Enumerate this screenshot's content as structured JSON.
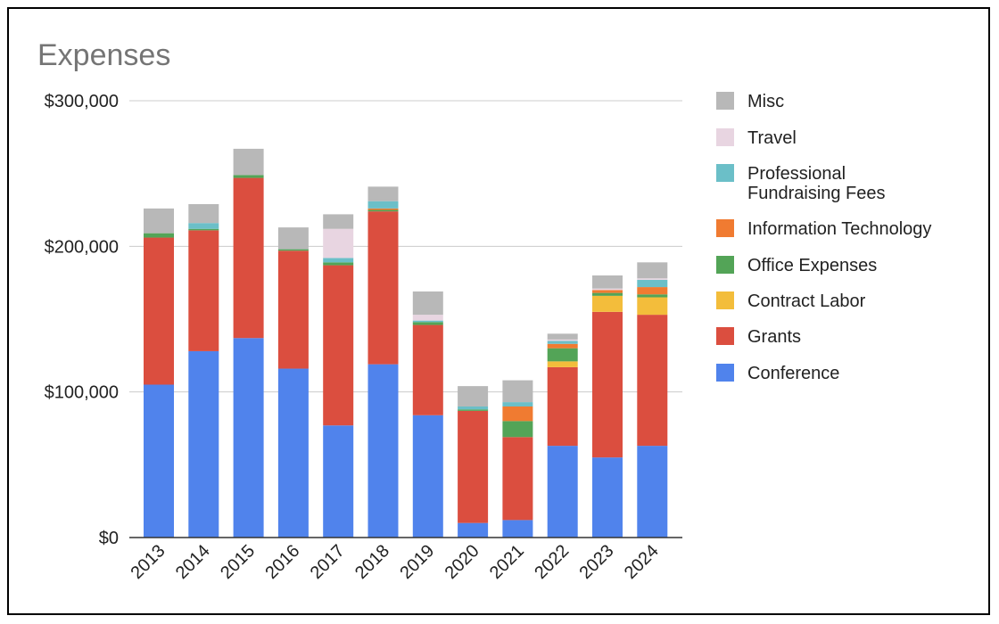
{
  "chart_data": {
    "type": "bar",
    "stacked": true,
    "title": "Expenses",
    "xlabel": "",
    "ylabel": "",
    "ylim": [
      0,
      300000
    ],
    "yticks": [
      0,
      100000,
      200000,
      300000
    ],
    "ytick_labels": [
      "$0",
      "$100,000",
      "$200,000",
      "$300,000"
    ],
    "grid": true,
    "legend_position": "right",
    "categories": [
      "2013",
      "2014",
      "2015",
      "2016",
      "2017",
      "2018",
      "2019",
      "2020",
      "2021",
      "2022",
      "2023",
      "2024"
    ],
    "series": [
      {
        "name": "Conference",
        "color": "#5083EC",
        "values": [
          105000,
          128000,
          137000,
          116000,
          77000,
          119000,
          84000,
          10000,
          12000,
          63000,
          55000,
          63000
        ]
      },
      {
        "name": "Grants",
        "color": "#DB4E3F",
        "values": [
          101000,
          83000,
          110000,
          81000,
          110000,
          105000,
          62000,
          77000,
          57000,
          54000,
          100000,
          90000
        ]
      },
      {
        "name": "Contract Labor",
        "color": "#F3BD3B",
        "values": [
          0,
          0,
          0,
          0,
          0,
          0,
          0,
          0,
          0,
          4000,
          11000,
          12000
        ]
      },
      {
        "name": "Office Expenses",
        "color": "#53A457",
        "values": [
          3000,
          1000,
          2000,
          1000,
          2000,
          1000,
          2000,
          1000,
          11000,
          9000,
          2000,
          2000
        ]
      },
      {
        "name": "Information Technology",
        "color": "#F07B31",
        "values": [
          0,
          0,
          0,
          0,
          0,
          1000,
          0,
          0,
          10000,
          3000,
          2000,
          5000
        ]
      },
      {
        "name": "Professional Fundraising Fees",
        "color": "#6BBFC8",
        "values": [
          0,
          4000,
          0,
          0,
          3000,
          5000,
          1000,
          2000,
          3000,
          2000,
          0,
          5000
        ]
      },
      {
        "name": "Travel",
        "color": "#E8D5E1",
        "values": [
          0,
          0,
          0,
          0,
          20000,
          0,
          4000,
          0,
          0,
          1000,
          1000,
          1000
        ]
      },
      {
        "name": "Misc",
        "color": "#B8B8B8",
        "values": [
          17000,
          13000,
          18000,
          15000,
          10000,
          10000,
          16000,
          14000,
          15000,
          4000,
          9000,
          11000
        ]
      }
    ],
    "legend_order": [
      "Misc",
      "Travel",
      "Professional Fundraising Fees",
      "Information Technology",
      "Office Expenses",
      "Contract Labor",
      "Grants",
      "Conference"
    ],
    "legend_labels": {
      "Misc": [
        "Misc"
      ],
      "Travel": [
        "Travel"
      ],
      "Professional Fundraising Fees": [
        "Professional",
        "Fundraising Fees"
      ],
      "Information Technology": [
        "Information Technology"
      ],
      "Office Expenses": [
        "Office Expenses"
      ],
      "Contract Labor": [
        "Contract Labor"
      ],
      "Grants": [
        "Grants"
      ],
      "Conference": [
        "Conference"
      ]
    }
  }
}
